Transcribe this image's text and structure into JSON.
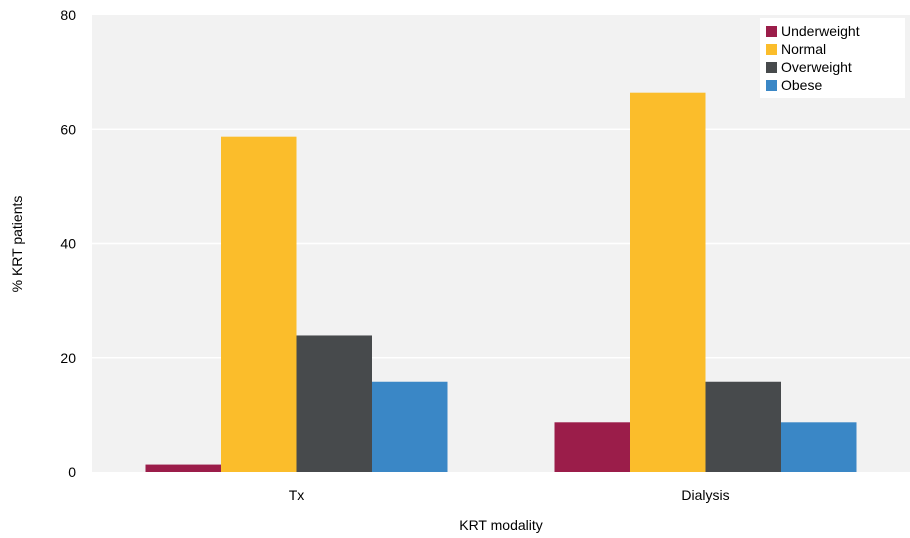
{
  "chart_data": {
    "type": "bar",
    "title": "",
    "xlabel": "KRT modality",
    "ylabel": "% KRT patients",
    "categories": [
      "Tx",
      "Dialysis"
    ],
    "ylim": [
      0,
      80
    ],
    "yticks": [
      "0",
      "20",
      "40",
      "60",
      "80"
    ],
    "grid": true,
    "legend_position": "top-right",
    "series": [
      {
        "name": "Underweight",
        "color": "#9b1d4a",
        "values": [
          1.3,
          8.7
        ]
      },
      {
        "name": "Normal",
        "color": "#fbbd2b",
        "values": [
          58.7,
          66.4
        ]
      },
      {
        "name": "Overweight",
        "color": "#474a4c",
        "values": [
          23.9,
          15.8
        ]
      },
      {
        "name": "Obese",
        "color": "#3a87c6",
        "values": [
          15.8,
          8.7
        ]
      }
    ]
  }
}
